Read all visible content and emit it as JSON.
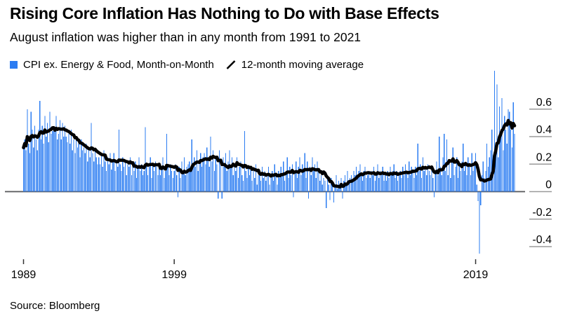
{
  "header": {
    "title": "Rising Core Inflation Has Nothing to Do with Base Effects",
    "subtitle": "August inflation was higher than in any month from 1991 to 2021"
  },
  "footer": {
    "source": "Source: Bloomberg"
  },
  "colors": {
    "bar_blue": "#2b7cf2",
    "moving_average_black": "#000000",
    "zero_axis_line": "#58595b",
    "tick_underline_gray": "#9a9a9a",
    "axis_text": "#000000"
  },
  "chart_data": {
    "type": "bar",
    "title": "Rising Core Inflation Has Nothing to Do with Base Effects",
    "subtitle": "August inflation was higher than in any month from 1991 to 2021",
    "frequency": "monthly",
    "x_start": "1989-01",
    "x_end": "2021-08",
    "x_axis": {
      "tick_labels": [
        "1989",
        "1999",
        "2019"
      ],
      "tick_month_indices": [
        0,
        120,
        360
      ]
    },
    "y_axis": {
      "side": "right",
      "tick_values": [
        0.6,
        0.4,
        0.2,
        0,
        -0.2,
        -0.4
      ],
      "tick_labels": [
        "0.6",
        "0.4",
        "0.2",
        "0",
        "-0.2",
        "-0.4"
      ],
      "range": [
        -0.5,
        0.92
      ],
      "gridlines": false
    },
    "legend_position": "top-left",
    "series": [
      {
        "name": "CPI ex. Energy & Food, Month-on-Month",
        "type": "bar",
        "color": "#2b7cf2",
        "values": [
          0.32,
          0.38,
          0.3,
          0.6,
          0.35,
          0.28,
          0.58,
          0.45,
          0.32,
          0.48,
          0.38,
          0.3,
          0.45,
          0.66,
          0.38,
          0.48,
          0.35,
          0.55,
          0.4,
          0.5,
          0.36,
          0.58,
          0.42,
          0.44,
          0.46,
          0.44,
          0.55,
          0.38,
          0.42,
          0.52,
          0.38,
          0.5,
          0.4,
          0.48,
          0.4,
          0.36,
          0.42,
          0.35,
          0.45,
          0.3,
          0.38,
          0.28,
          0.4,
          0.32,
          0.35,
          0.25,
          0.38,
          0.3,
          0.32,
          0.28,
          0.35,
          0.22,
          0.3,
          0.25,
          0.5,
          0.28,
          0.22,
          0.3,
          0.25,
          0.2,
          0.25,
          0.2,
          0.28,
          0.18,
          0.3,
          0.22,
          0.15,
          0.25,
          0.2,
          0.28,
          0.16,
          0.22,
          0.28,
          0.15,
          0.22,
          0.18,
          0.45,
          0.2,
          0.15,
          0.25,
          0.18,
          0.22,
          0.12,
          0.2,
          0.18,
          0.25,
          0.12,
          0.2,
          0.15,
          0.22,
          0.1,
          0.18,
          0.25,
          0.15,
          0.2,
          0.12,
          0.15,
          0.47,
          0.2,
          0.12,
          0.18,
          0.25,
          0.1,
          0.2,
          0.15,
          0.22,
          0.18,
          0.12,
          0.2,
          0.12,
          0.18,
          0.25,
          0.1,
          0.15,
          0.42,
          0.18,
          0.12,
          0.2,
          0.15,
          0.1,
          0.15,
          0.2,
          0.12,
          -0.04,
          0.18,
          0.1,
          0.22,
          0.15,
          0.25,
          0.12,
          0.18,
          0.2,
          0.22,
          0.15,
          0.38,
          0.2,
          0.25,
          0.18,
          0.3,
          0.15,
          0.22,
          0.28,
          0.18,
          0.25,
          0.28,
          0.2,
          0.32,
          0.25,
          0.18,
          0.4,
          0.22,
          0.3,
          0.15,
          0.25,
          0.2,
          -0.05,
          0.3,
          0.22,
          -0.05,
          0.25,
          0.18,
          0.28,
          0.15,
          0.22,
          0.3,
          0.18,
          0.25,
          0.12,
          0.2,
          0.15,
          0.25,
          0.1,
          0.18,
          0.22,
          0.12,
          0.08,
          0.44,
          0.15,
          0.1,
          0.18,
          0.12,
          0.18,
          0.08,
          0.15,
          0.1,
          0.2,
          0.05,
          0.12,
          0.15,
          0.08,
          0.18,
          0.1,
          0.15,
          0.08,
          0.12,
          0.18,
          0.05,
          0.1,
          0.15,
          0.08,
          0.2,
          0.12,
          0.05,
          0.15,
          0.1,
          0.18,
          0.12,
          0.22,
          0.08,
          0.15,
          0.25,
          0.1,
          0.18,
          0.12,
          0.2,
          -0.04,
          0.15,
          0.22,
          0.1,
          0.18,
          0.25,
          0.12,
          0.2,
          0.15,
          0.28,
          0.1,
          0.22,
          -0.05,
          0.18,
          0.12,
          0.25,
          0.15,
          0.2,
          0.1,
          0.22,
          0.15,
          0.08,
          0.12,
          0.05,
          0.1,
          0.08,
          -0.12,
          0.12,
          0.05,
          -0.06,
          0.1,
          0.08,
          -0.08,
          0.05,
          0.12,
          0.02,
          0.08,
          0.05,
          0.1,
          -0.05,
          0.08,
          0.12,
          0.05,
          0.15,
          0.08,
          0.1,
          0.12,
          0.08,
          0.15,
          0.12,
          0.18,
          0.1,
          0.15,
          0.2,
          0.12,
          0.08,
          0.15,
          0.18,
          0.1,
          0.12,
          0.15,
          0.1,
          0.15,
          0.12,
          0.18,
          0.08,
          0.12,
          0.2,
          0.1,
          0.15,
          0.12,
          0.18,
          0.08,
          0.12,
          0.08,
          0.15,
          0.1,
          0.18,
          0.12,
          0.15,
          0.2,
          0.1,
          0.15,
          0.08,
          0.12,
          0.15,
          0.1,
          0.18,
          0.12,
          0.2,
          0.15,
          0.1,
          0.22,
          0.12,
          0.18,
          0.15,
          0.1,
          0.18,
          0.12,
          0.35,
          0.15,
          0.2,
          0.1,
          0.25,
          0.15,
          0.18,
          0.12,
          0.2,
          0.15,
          0.12,
          0.18,
          0.1,
          -0.04,
          0.15,
          0.22,
          0.12,
          0.4,
          0.18,
          0.12,
          0.25,
          0.42,
          0.15,
          0.38,
          0.12,
          0.2,
          0.1,
          0.22,
          0.32,
          0.12,
          0.18,
          0.25,
          0.1,
          0.2,
          0.15,
          0.22,
          0.35,
          0.15,
          0.2,
          0.12,
          0.25,
          0.18,
          0.12,
          0.28,
          0.15,
          0.22,
          0.28,
          0.05,
          -0.07,
          -0.45,
          -0.1,
          0.12,
          0.22,
          0.1,
          0.15,
          0.35,
          0.18,
          0.25,
          0.3,
          0.45,
          0.2,
          0.88,
          0.35,
          0.78,
          0.25,
          0.62,
          0.4,
          0.68,
          0.3,
          0.55,
          0.45,
          0.35,
          0.6,
          0.58,
          0.45,
          0.32,
          0.65,
          0.42
        ]
      },
      {
        "name": "12-month moving average",
        "type": "line",
        "color": "#000000",
        "derived_from": "trailing 12-month mean of the monthly bar values"
      }
    ]
  }
}
